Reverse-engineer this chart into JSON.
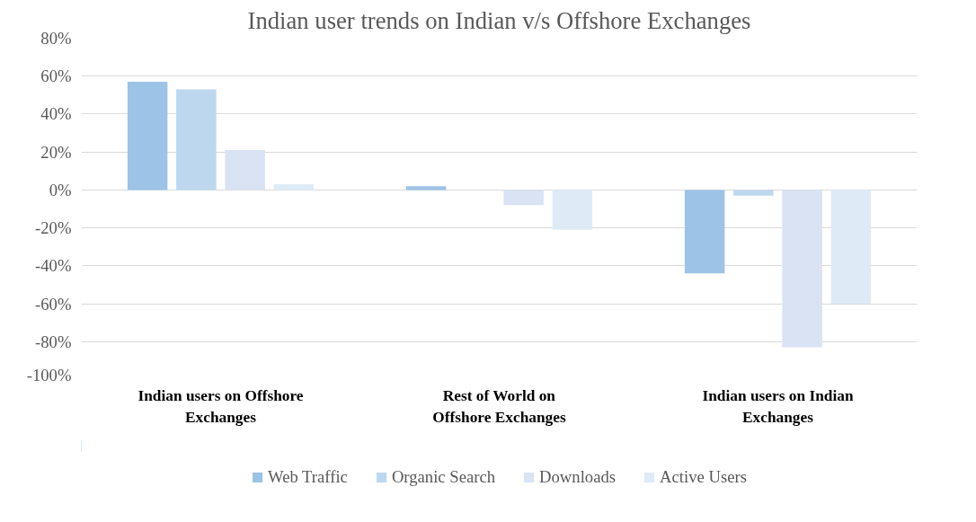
{
  "chart_data": {
    "type": "bar",
    "title": "Indian user trends on Indian v/s Offshore Exchanges",
    "categories": [
      "Indian users on Offshore Exchanges",
      "Rest of World on Offshore Exchanges",
      "Indian users on Indian Exchanges"
    ],
    "series": [
      {
        "name": "Web Traffic",
        "color": "#9dc3e6",
        "values": [
          57,
          2,
          -44
        ]
      },
      {
        "name": "Organic Search",
        "color": "#bdd7ee",
        "values": [
          53,
          0,
          -3
        ]
      },
      {
        "name": "Downloads",
        "color": "#dae3f3",
        "values": [
          21,
          -8,
          -83
        ]
      },
      {
        "name": "Active Users",
        "color": "#deebf7",
        "values": [
          3,
          -21,
          -60
        ]
      }
    ],
    "ylim": [
      -100,
      80
    ],
    "yticks": [
      {
        "value": -100,
        "label": "-100%"
      },
      {
        "value": -80,
        "label": "-80%"
      },
      {
        "value": -60,
        "label": "-60%"
      },
      {
        "value": -40,
        "label": "-40%"
      },
      {
        "value": -20,
        "label": "-20%"
      },
      {
        "value": 0,
        "label": "0%"
      },
      {
        "value": 20,
        "label": "20%"
      },
      {
        "value": 40,
        "label": "40%"
      },
      {
        "value": 60,
        "label": "60%"
      },
      {
        "value": 80,
        "label": "80%"
      }
    ],
    "grid": "y",
    "legend": "bottom"
  }
}
